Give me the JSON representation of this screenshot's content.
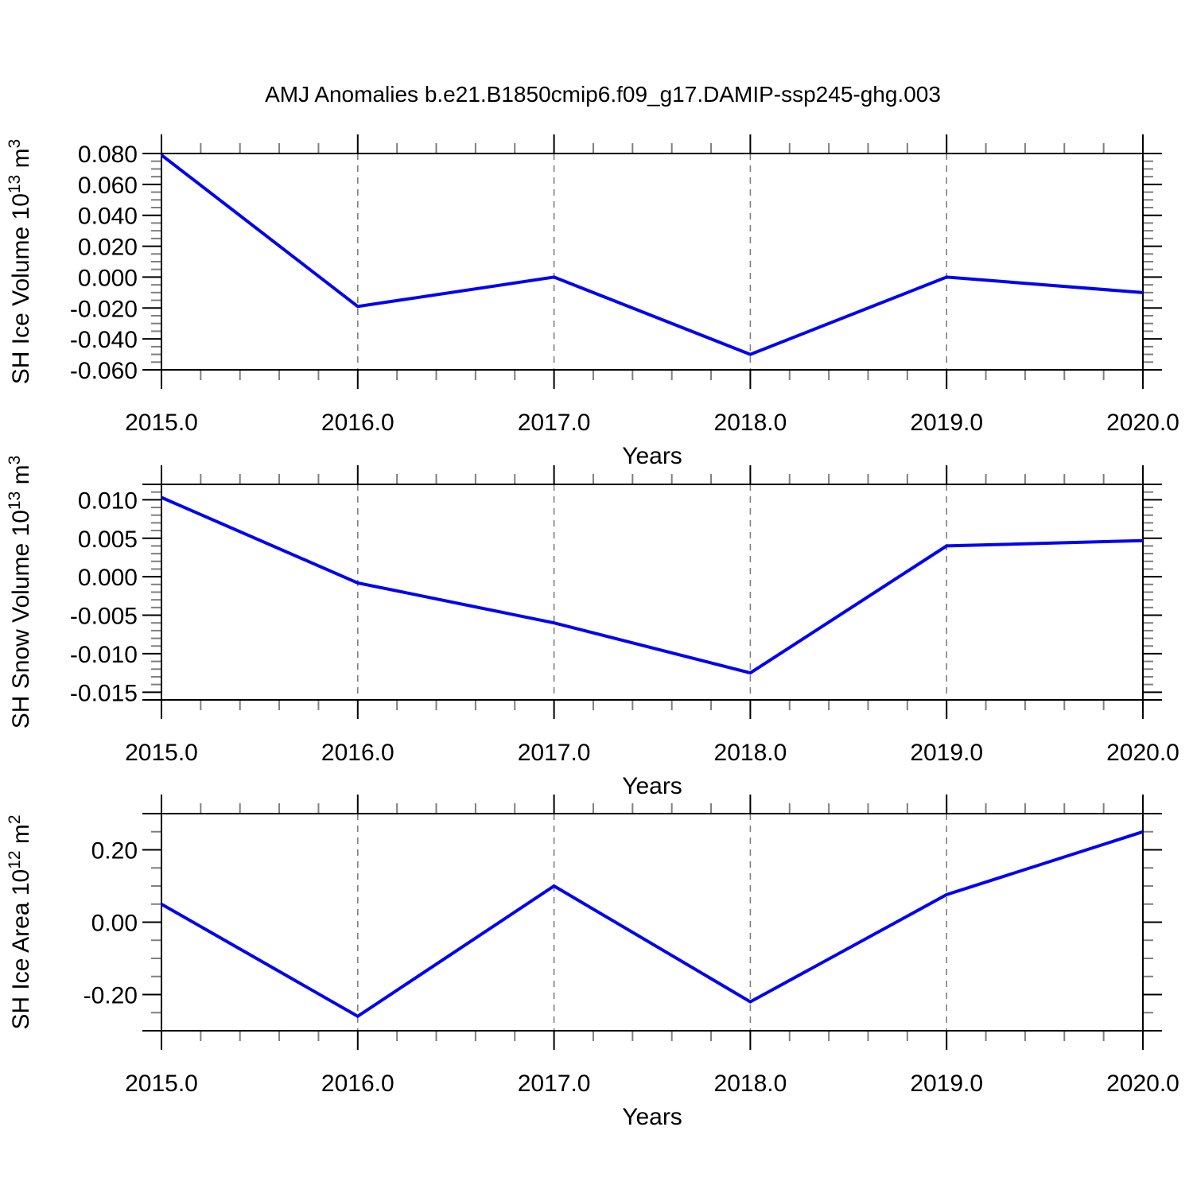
{
  "title": "AMJ Anomalies b.e21.B1850cmip6.f09_g17.DAMIP-ssp245-ghg.003",
  "line_color": "#0202f2",
  "grid_color": "#7f7f7f",
  "axis_color": "#000000",
  "minor_tick_color": "#7f7f7f",
  "chart_data": [
    {
      "type": "line",
      "name": "sh-ice-volume",
      "ylabel_text": "SH Ice Volume 10^13 m^3",
      "ylabel_parts": [
        {
          "t": "SH Ice Volume 10"
        },
        {
          "t": "13",
          "sup": true
        },
        {
          "t": " m"
        },
        {
          "t": "3",
          "sup": true
        }
      ],
      "xlabel": "Years",
      "x": [
        2015,
        2016,
        2017,
        2018,
        2019,
        2020
      ],
      "values": [
        0.079,
        -0.019,
        0.0,
        -0.05,
        0.0,
        -0.01
      ],
      "ylim": [
        -0.06,
        0.08
      ],
      "ytick_values": [
        0.08,
        0.06,
        0.04,
        0.02,
        0.0,
        -0.02,
        -0.04,
        -0.06
      ],
      "ytick_labels": [
        "0.080",
        "0.060",
        "0.040",
        "0.020",
        "0.000",
        "-0.020",
        "-0.040",
        "-0.060"
      ],
      "yminor_step": 0.005,
      "xlim": [
        2015,
        2020
      ],
      "xtick_values": [
        2015,
        2016,
        2017,
        2018,
        2019,
        2020
      ],
      "xtick_labels": [
        "2015.0",
        "2016.0",
        "2017.0",
        "2018.0",
        "2019.0",
        "2020.0"
      ],
      "xminor_step": 0.2,
      "grid_x": [
        2016,
        2017,
        2018,
        2019
      ]
    },
    {
      "type": "line",
      "name": "sh-snow-volume",
      "ylabel_text": "SH Snow Volume 10^13 m^3",
      "ylabel_parts": [
        {
          "t": "SH Snow Volume 10"
        },
        {
          "t": "13",
          "sup": true
        },
        {
          "t": " m"
        },
        {
          "t": "3",
          "sup": true
        }
      ],
      "xlabel": "Years",
      "x": [
        2015,
        2016,
        2017,
        2018,
        2019,
        2020
      ],
      "values": [
        0.0103,
        -0.0008,
        -0.006,
        -0.0125,
        0.004,
        0.0047
      ],
      "ylim": [
        -0.016,
        0.012
      ],
      "ytick_values": [
        0.01,
        0.005,
        0.0,
        -0.005,
        -0.01,
        -0.015
      ],
      "ytick_labels": [
        "0.010",
        "0.005",
        "0.000",
        "-0.005",
        "-0.010",
        "-0.015"
      ],
      "yminor_step": 0.001,
      "xlim": [
        2015,
        2020
      ],
      "xtick_values": [
        2015,
        2016,
        2017,
        2018,
        2019,
        2020
      ],
      "xtick_labels": [
        "2015.0",
        "2016.0",
        "2017.0",
        "2018.0",
        "2019.0",
        "2020.0"
      ],
      "xminor_step": 0.2,
      "grid_x": [
        2016,
        2017,
        2018,
        2019
      ]
    },
    {
      "type": "line",
      "name": "sh-ice-area",
      "ylabel_text": "SH Ice Area 10^12 m^2",
      "ylabel_parts": [
        {
          "t": "SH Ice Area 10"
        },
        {
          "t": "12",
          "sup": true
        },
        {
          "t": " m"
        },
        {
          "t": "2",
          "sup": true
        }
      ],
      "xlabel": "Years",
      "x": [
        2015,
        2016,
        2017,
        2018,
        2019,
        2020
      ],
      "values": [
        0.05,
        -0.26,
        0.1,
        -0.22,
        0.076,
        0.25
      ],
      "ylim": [
        -0.3,
        0.3
      ],
      "ytick_values": [
        0.2,
        0.0,
        -0.2
      ],
      "ytick_labels": [
        "0.20",
        "0.00",
        "-0.20"
      ],
      "yminor_step": 0.05,
      "xlim": [
        2015,
        2020
      ],
      "xtick_values": [
        2015,
        2016,
        2017,
        2018,
        2019,
        2020
      ],
      "xtick_labels": [
        "2015.0",
        "2016.0",
        "2017.0",
        "2018.0",
        "2019.0",
        "2020.0"
      ],
      "xminor_step": 0.2,
      "grid_x": [
        2016,
        2017,
        2018,
        2019
      ]
    }
  ]
}
